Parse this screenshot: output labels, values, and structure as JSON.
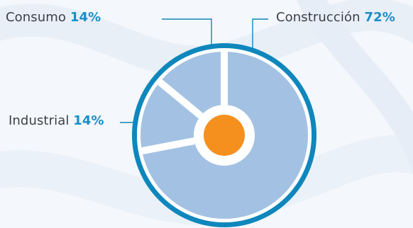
{
  "colors": {
    "ring": "#0f87bd",
    "slice": "#a3c2e3",
    "separator": "#ffffff",
    "center": "#f5901f",
    "leader": "#0f87bd",
    "label_text": "#3c4148",
    "percent_text": "#1a8ec8",
    "background": "#f4f7fb"
  },
  "chart_data": {
    "type": "pie",
    "categories": [
      "Construcción",
      "Consumo",
      "Industrial"
    ],
    "values": [
      72,
      14,
      14
    ],
    "labels": [
      {
        "name": "Consumo",
        "percent": "14%"
      },
      {
        "name": "Construcción",
        "percent": "72%"
      },
      {
        "name": "Industrial",
        "percent": "14%"
      }
    ],
    "title": "",
    "legend": "callouts"
  }
}
